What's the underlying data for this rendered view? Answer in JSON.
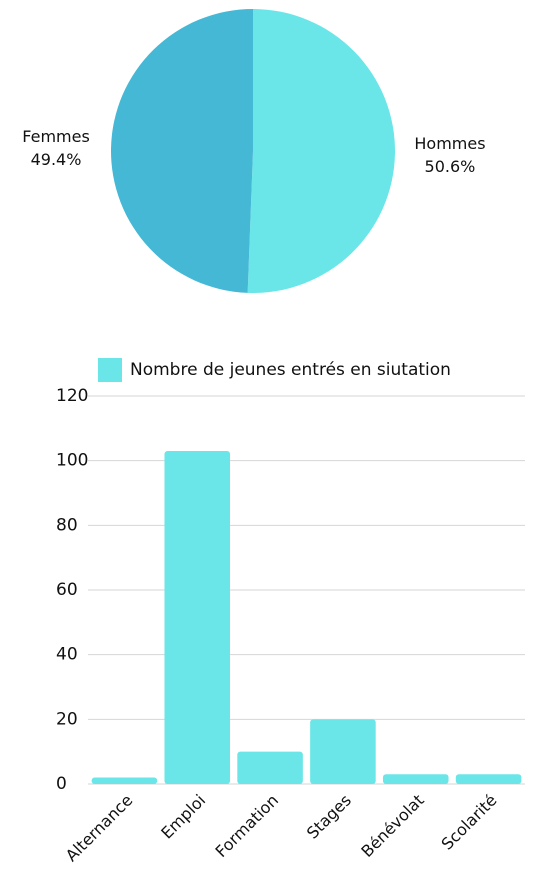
{
  "chart_data": [
    {
      "type": "pie",
      "categories": [
        "Hommes",
        "Femmes"
      ],
      "values": [
        50.6,
        49.4
      ],
      "value_labels": [
        "50.6%",
        "49.4%"
      ],
      "colors": [
        "#6be6e8",
        "#45b8d6"
      ]
    },
    {
      "type": "bar",
      "categories": [
        "Alternance",
        "Emploi",
        "Formation",
        "Stages",
        "Bénévolat",
        "Scolarité"
      ],
      "series": [
        {
          "name": "Nombre de jeunes entrés en siutation",
          "color": "#6be6e8",
          "values": [
            2,
            103,
            10,
            20,
            3,
            3
          ]
        }
      ],
      "ylim": [
        0,
        120
      ],
      "yticks": [
        0,
        20,
        40,
        60,
        80,
        100,
        120
      ],
      "grid": true,
      "legend": "top"
    }
  ]
}
